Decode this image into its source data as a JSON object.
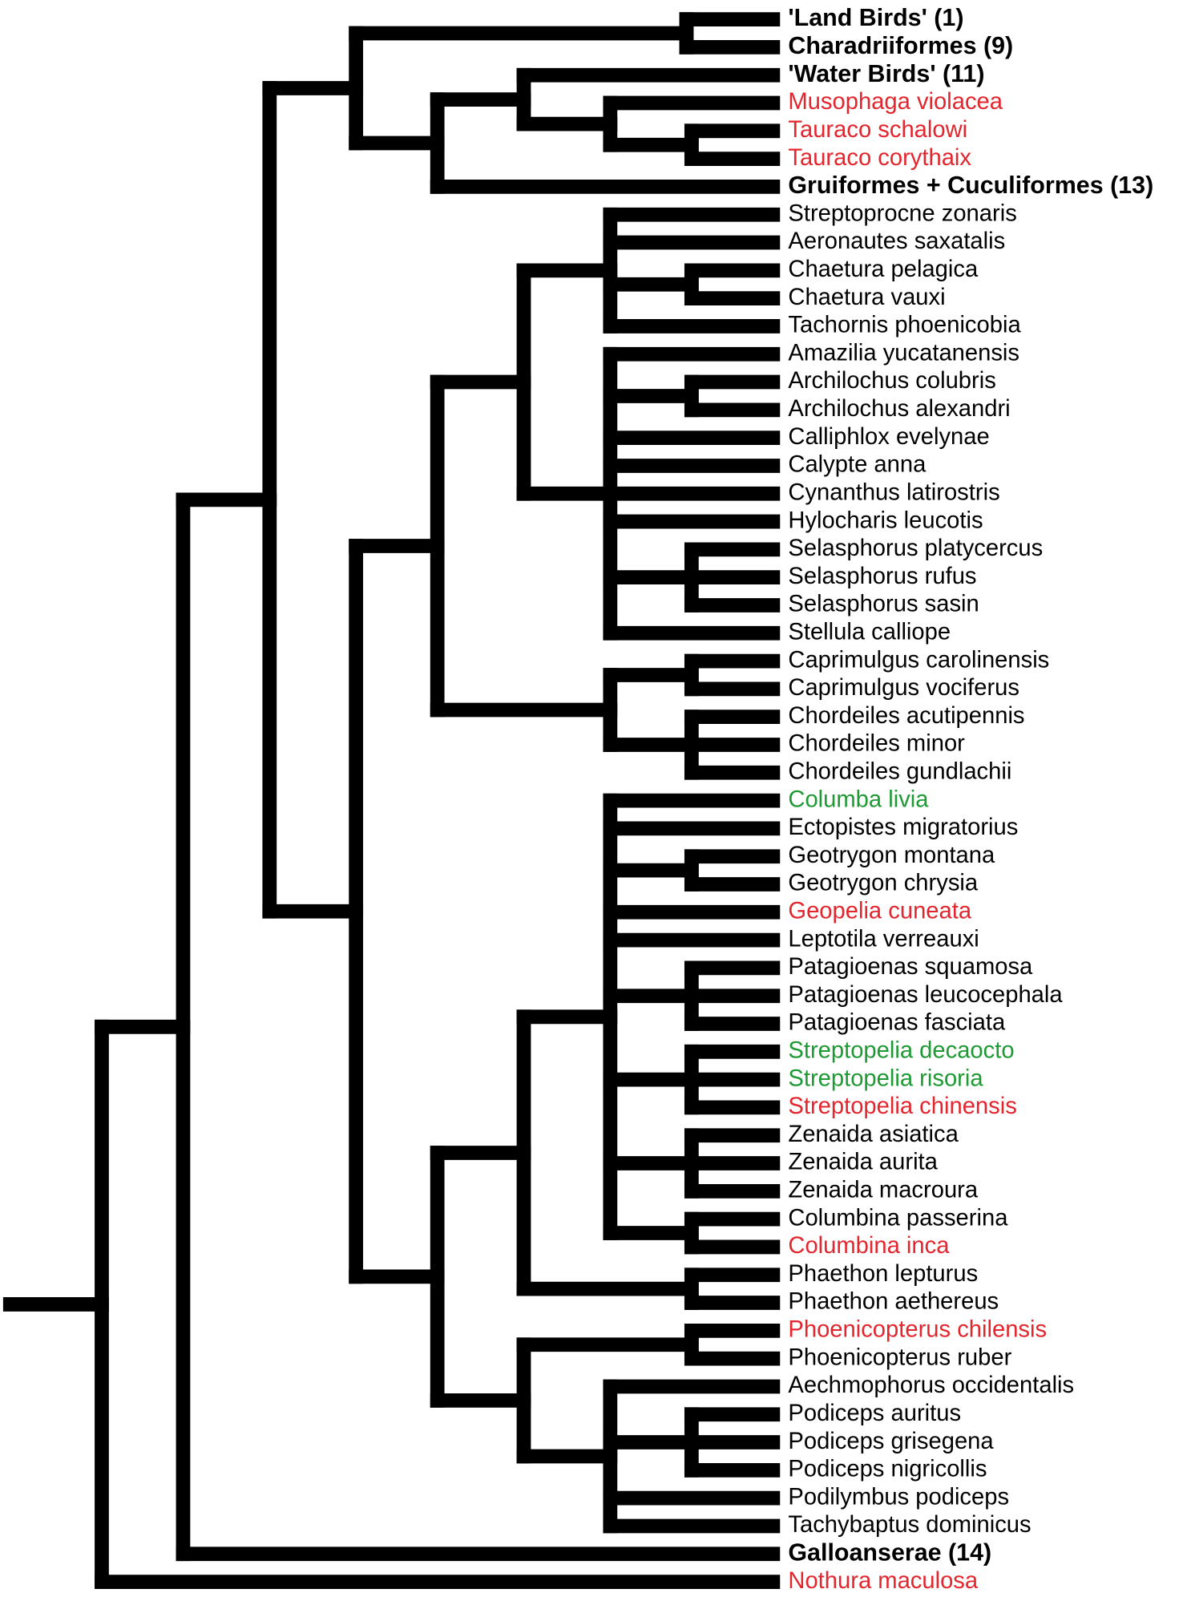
{
  "leaves": [
    {
      "label": "'Land Birds' (1)",
      "color": "#000000",
      "bold": true
    },
    {
      "label": "Charadriiformes (9)",
      "color": "#000000",
      "bold": true
    },
    {
      "label": "'Water Birds' (11)",
      "color": "#000000",
      "bold": true
    },
    {
      "label": "Musophaga violacea",
      "color": "#e3262e",
      "bold": false
    },
    {
      "label": "Tauraco schalowi",
      "color": "#e3262e",
      "bold": false
    },
    {
      "label": "Tauraco corythaix",
      "color": "#e3262e",
      "bold": false
    },
    {
      "label": "Gruiformes + Cuculiformes (13)",
      "color": "#000000",
      "bold": true
    },
    {
      "label": "Streptoprocne zonaris",
      "color": "#000000",
      "bold": false
    },
    {
      "label": "Aeronautes saxatalis",
      "color": "#000000",
      "bold": false
    },
    {
      "label": "Chaetura pelagica",
      "color": "#000000",
      "bold": false
    },
    {
      "label": "Chaetura vauxi",
      "color": "#000000",
      "bold": false
    },
    {
      "label": "Tachornis phoenicobia",
      "color": "#000000",
      "bold": false
    },
    {
      "label": "Amazilia yucatanensis",
      "color": "#000000",
      "bold": false
    },
    {
      "label": "Archilochus colubris",
      "color": "#000000",
      "bold": false
    },
    {
      "label": "Archilochus alexandri",
      "color": "#000000",
      "bold": false
    },
    {
      "label": "Calliphlox evelynae",
      "color": "#000000",
      "bold": false
    },
    {
      "label": "Calypte anna",
      "color": "#000000",
      "bold": false
    },
    {
      "label": "Cynanthus latirostris",
      "color": "#000000",
      "bold": false
    },
    {
      "label": "Hylocharis leucotis",
      "color": "#000000",
      "bold": false
    },
    {
      "label": "Selasphorus platycercus",
      "color": "#000000",
      "bold": false
    },
    {
      "label": "Selasphorus rufus",
      "color": "#000000",
      "bold": false
    },
    {
      "label": "Selasphorus sasin",
      "color": "#000000",
      "bold": false
    },
    {
      "label": "Stellula calliope",
      "color": "#000000",
      "bold": false
    },
    {
      "label": "Caprimulgus carolinensis",
      "color": "#000000",
      "bold": false
    },
    {
      "label": "Caprimulgus vociferus",
      "color": "#000000",
      "bold": false
    },
    {
      "label": "Chordeiles acutipennis",
      "color": "#000000",
      "bold": false
    },
    {
      "label": "Chordeiles minor",
      "color": "#000000",
      "bold": false
    },
    {
      "label": "Chordeiles gundlachii",
      "color": "#000000",
      "bold": false
    },
    {
      "label": "Columba livia",
      "color": "#1e9a34",
      "bold": false
    },
    {
      "label": "Ectopistes migratorius",
      "color": "#000000",
      "bold": false
    },
    {
      "label": "Geotrygon montana",
      "color": "#000000",
      "bold": false
    },
    {
      "label": "Geotrygon chrysia",
      "color": "#000000",
      "bold": false
    },
    {
      "label": "Geopelia cuneata",
      "color": "#e3262e",
      "bold": false
    },
    {
      "label": "Leptotila verreauxi",
      "color": "#000000",
      "bold": false
    },
    {
      "label": "Patagioenas squamosa",
      "color": "#000000",
      "bold": false
    },
    {
      "label": "Patagioenas leucocephala",
      "color": "#000000",
      "bold": false
    },
    {
      "label": "Patagioenas fasciata",
      "color": "#000000",
      "bold": false
    },
    {
      "label": "Streptopelia decaocto",
      "color": "#1e9a34",
      "bold": false
    },
    {
      "label": "Streptopelia risoria",
      "color": "#1e9a34",
      "bold": false
    },
    {
      "label": "Streptopelia chinensis",
      "color": "#e3262e",
      "bold": false
    },
    {
      "label": "Zenaida asiatica",
      "color": "#000000",
      "bold": false
    },
    {
      "label": "Zenaida aurita",
      "color": "#000000",
      "bold": false
    },
    {
      "label": "Zenaida macroura",
      "color": "#000000",
      "bold": false
    },
    {
      "label": "Columbina passerina",
      "color": "#000000",
      "bold": false
    },
    {
      "label": "Columbina inca",
      "color": "#e3262e",
      "bold": false
    },
    {
      "label": "Phaethon lepturus",
      "color": "#000000",
      "bold": false
    },
    {
      "label": "Phaethon aethereus",
      "color": "#000000",
      "bold": false
    },
    {
      "label": "Phoenicopterus chilensis",
      "color": "#e3262e",
      "bold": false
    },
    {
      "label": "Phoenicopterus ruber",
      "color": "#000000",
      "bold": false
    },
    {
      "label": "Aechmophorus occidentalis",
      "color": "#000000",
      "bold": false
    },
    {
      "label": "Podiceps auritus",
      "color": "#000000",
      "bold": false
    },
    {
      "label": "Podiceps grisegena",
      "color": "#000000",
      "bold": false
    },
    {
      "label": "Podiceps nigricollis",
      "color": "#000000",
      "bold": false
    },
    {
      "label": "Podilymbus podiceps",
      "color": "#000000",
      "bold": false
    },
    {
      "label": "Tachybaptus dominicus",
      "color": "#000000",
      "bold": false
    },
    {
      "label": "Galloanserae (14)",
      "color": "#000000",
      "bold": true
    },
    {
      "label": "Nothura maculosa",
      "color": "#e3262e",
      "bold": false
    }
  ]
}
